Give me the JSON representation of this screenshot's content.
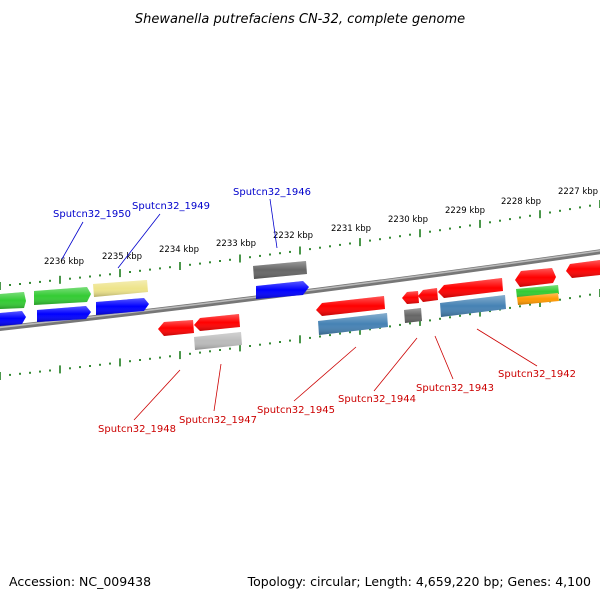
{
  "title": "Shewanella putrefaciens CN-32, complete genome",
  "footer": {
    "accession": "Accession: NC_009438",
    "summary": "Topology: circular; Length: 4,659,220 bp; Genes: 4,100"
  },
  "colors": {
    "backbone": "#888888",
    "ruler": "#1e7d1e",
    "label_top": "#0000cc",
    "label_bottom": "#cc0000",
    "red": "#ff0000",
    "blue": "#0000ff",
    "green": "#33cc33",
    "yellow": "#eee48a",
    "grey": "#666666",
    "lightgrey": "#bbbbbb",
    "steel": "#4682b4",
    "orange": "#ff9900"
  },
  "ruler_labels": [
    "2236 kbp",
    "2235 kbp",
    "2234 kbp",
    "2233 kbp",
    "2232 kbp",
    "2231 kbp",
    "2230 kbp",
    "2229 kbp",
    "2228 kbp",
    "2227 kbp"
  ],
  "gene_labels_top": [
    "Sputcn32_1950",
    "Sputcn32_1949",
    "Sputcn32_1946"
  ],
  "gene_labels_bottom": [
    "Sputcn32_1948",
    "Sputcn32_1947",
    "Sputcn32_1945",
    "Sputcn32_1944",
    "Sputcn32_1943",
    "Sputcn32_1942"
  ]
}
